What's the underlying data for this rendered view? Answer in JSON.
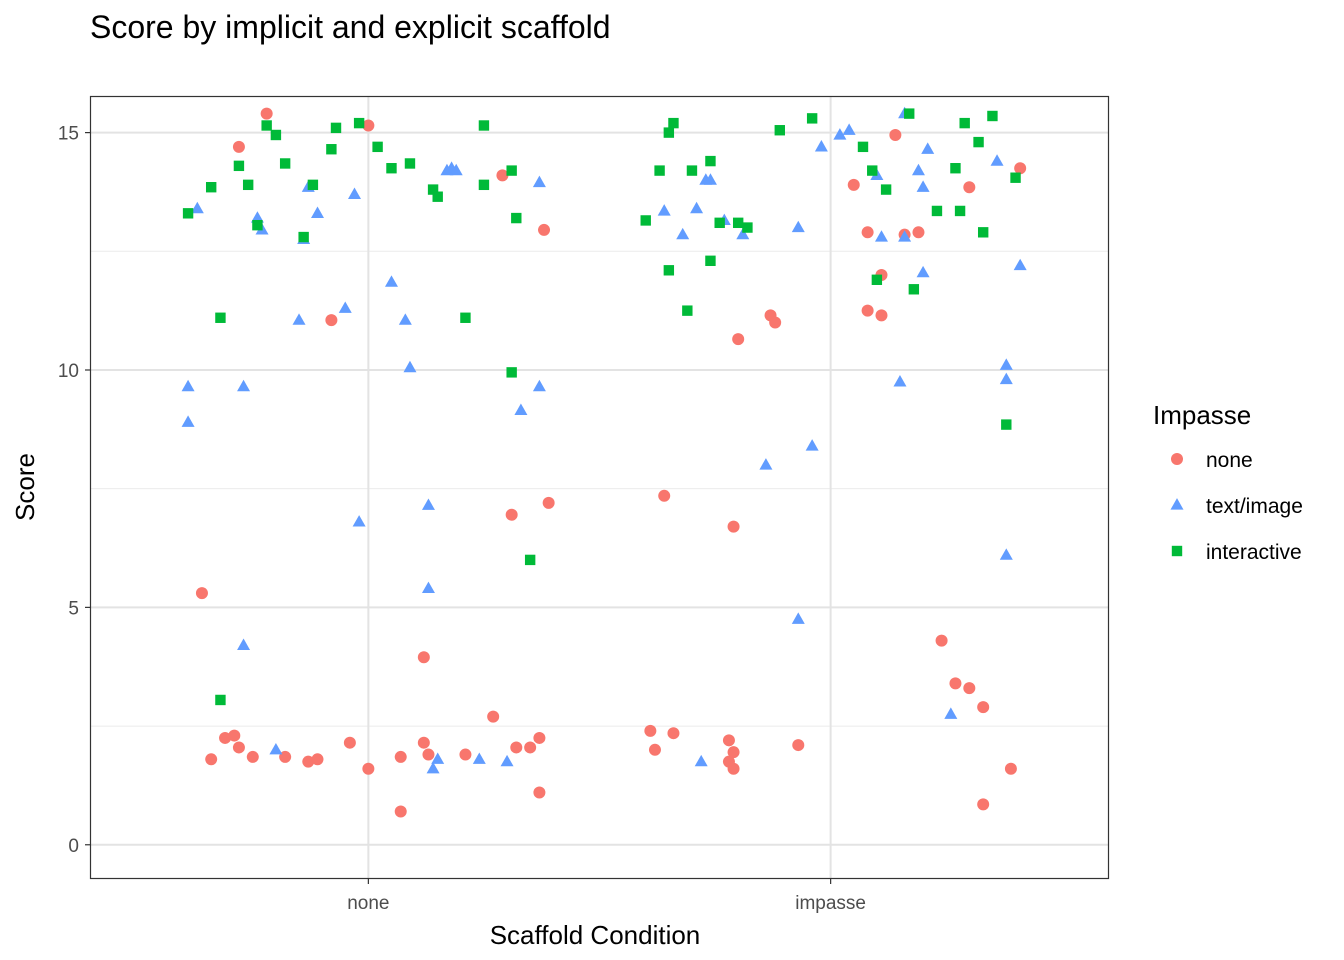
{
  "chart_data": {
    "type": "scatter",
    "title": "Score by implicit and explicit scaffold",
    "xlabel": "Scaffold Condition",
    "ylabel": "Score",
    "categories": [
      "none",
      "impasse"
    ],
    "yticks": [
      "0",
      "5",
      "10",
      "15"
    ],
    "ylim": [
      -0.7,
      15.75
    ],
    "xlim": [
      0.4,
      2.6
    ],
    "grid": true,
    "legend": {
      "title": "Impasse",
      "position": "right"
    },
    "series": [
      {
        "name": "none",
        "color": "#F8766D",
        "shape": "circle",
        "points": [
          [
            0.64,
            5.3
          ],
          [
            0.66,
            1.8
          ],
          [
            0.69,
            2.25
          ],
          [
            0.71,
            2.3
          ],
          [
            0.72,
            2.05
          ],
          [
            0.72,
            14.7
          ],
          [
            0.75,
            1.85
          ],
          [
            0.78,
            15.4
          ],
          [
            0.82,
            1.85
          ],
          [
            0.87,
            1.75
          ],
          [
            0.89,
            1.8
          ],
          [
            0.92,
            11.05
          ],
          [
            0.96,
            2.15
          ],
          [
            1.0,
            15.15
          ],
          [
            1.0,
            1.6
          ],
          [
            1.07,
            0.7
          ],
          [
            1.07,
            1.85
          ],
          [
            1.12,
            3.95
          ],
          [
            1.12,
            2.15
          ],
          [
            1.13,
            1.9
          ],
          [
            1.21,
            1.9
          ],
          [
            1.27,
            2.7
          ],
          [
            1.29,
            14.1
          ],
          [
            1.31,
            6.95
          ],
          [
            1.32,
            2.05
          ],
          [
            1.35,
            2.05
          ],
          [
            1.37,
            2.25
          ],
          [
            1.37,
            1.1
          ],
          [
            1.38,
            12.95
          ],
          [
            1.39,
            7.2
          ],
          [
            1.61,
            2.4
          ],
          [
            1.62,
            2.0
          ],
          [
            1.64,
            7.35
          ],
          [
            1.66,
            2.35
          ],
          [
            1.78,
            2.2
          ],
          [
            1.78,
            1.75
          ],
          [
            1.79,
            6.7
          ],
          [
            1.79,
            1.95
          ],
          [
            1.79,
            1.6
          ],
          [
            1.8,
            10.65
          ],
          [
            1.87,
            11.15
          ],
          [
            1.88,
            11.0
          ],
          [
            1.93,
            2.1
          ],
          [
            2.05,
            13.9
          ],
          [
            2.08,
            12.9
          ],
          [
            2.08,
            11.25
          ],
          [
            2.11,
            12.0
          ],
          [
            2.11,
            11.15
          ],
          [
            2.14,
            14.95
          ],
          [
            2.16,
            12.85
          ],
          [
            2.19,
            12.9
          ],
          [
            2.24,
            4.3
          ],
          [
            2.27,
            3.4
          ],
          [
            2.3,
            13.85
          ],
          [
            2.3,
            3.3
          ],
          [
            2.33,
            2.9
          ],
          [
            2.33,
            0.85
          ],
          [
            2.39,
            1.6
          ],
          [
            2.41,
            14.25
          ]
        ]
      },
      {
        "name": "text/image",
        "color": "#619CFF",
        "shape": "triangle",
        "points": [
          [
            0.61,
            9.65
          ],
          [
            0.61,
            8.9
          ],
          [
            0.63,
            13.4
          ],
          [
            0.73,
            9.65
          ],
          [
            0.76,
            13.2
          ],
          [
            0.77,
            12.95
          ],
          [
            0.73,
            4.2
          ],
          [
            0.8,
            2.0
          ],
          [
            0.85,
            11.05
          ],
          [
            0.86,
            12.75
          ],
          [
            0.87,
            13.85
          ],
          [
            0.89,
            13.3
          ],
          [
            0.95,
            11.3
          ],
          [
            0.97,
            13.7
          ],
          [
            0.98,
            6.8
          ],
          [
            1.05,
            11.85
          ],
          [
            1.08,
            11.05
          ],
          [
            1.09,
            10.05
          ],
          [
            1.13,
            7.15
          ],
          [
            1.13,
            5.4
          ],
          [
            1.14,
            1.6
          ],
          [
            1.15,
            1.8
          ],
          [
            1.17,
            14.2
          ],
          [
            1.18,
            14.25
          ],
          [
            1.19,
            14.2
          ],
          [
            1.24,
            1.8
          ],
          [
            1.3,
            1.75
          ],
          [
            1.33,
            9.15
          ],
          [
            1.37,
            9.65
          ],
          [
            1.37,
            13.95
          ],
          [
            1.64,
            13.35
          ],
          [
            1.68,
            12.85
          ],
          [
            1.71,
            13.4
          ],
          [
            1.73,
            14.0
          ],
          [
            1.74,
            14.0
          ],
          [
            1.72,
            1.75
          ],
          [
            1.77,
            13.15
          ],
          [
            1.81,
            12.85
          ],
          [
            1.86,
            8.0
          ],
          [
            1.93,
            13.0
          ],
          [
            1.93,
            4.75
          ],
          [
            1.96,
            8.4
          ],
          [
            1.98,
            14.7
          ],
          [
            2.02,
            14.95
          ],
          [
            2.04,
            15.05
          ],
          [
            2.1,
            14.1
          ],
          [
            2.11,
            12.8
          ],
          [
            2.15,
            9.75
          ],
          [
            2.16,
            15.4
          ],
          [
            2.16,
            12.8
          ],
          [
            2.19,
            14.2
          ],
          [
            2.2,
            13.85
          ],
          [
            2.21,
            14.65
          ],
          [
            2.2,
            12.05
          ],
          [
            2.26,
            2.75
          ],
          [
            2.36,
            14.4
          ],
          [
            2.38,
            9.8
          ],
          [
            2.38,
            10.1
          ],
          [
            2.38,
            6.1
          ],
          [
            2.41,
            12.2
          ]
        ]
      },
      {
        "name": "interactive",
        "color": "#00BA38",
        "shape": "square",
        "points": [
          [
            0.61,
            13.3
          ],
          [
            0.66,
            13.85
          ],
          [
            0.68,
            11.1
          ],
          [
            0.68,
            3.05
          ],
          [
            0.72,
            14.3
          ],
          [
            0.74,
            13.9
          ],
          [
            0.76,
            13.05
          ],
          [
            0.78,
            15.15
          ],
          [
            0.8,
            14.95
          ],
          [
            0.82,
            14.35
          ],
          [
            0.86,
            12.8
          ],
          [
            0.88,
            13.9
          ],
          [
            0.92,
            14.65
          ],
          [
            0.93,
            15.1
          ],
          [
            0.98,
            15.2
          ],
          [
            1.02,
            14.7
          ],
          [
            1.05,
            14.25
          ],
          [
            1.09,
            14.35
          ],
          [
            1.14,
            13.8
          ],
          [
            1.15,
            13.65
          ],
          [
            1.21,
            11.1
          ],
          [
            1.25,
            15.15
          ],
          [
            1.25,
            13.9
          ],
          [
            1.31,
            14.2
          ],
          [
            1.31,
            9.95
          ],
          [
            1.32,
            13.2
          ],
          [
            1.35,
            6.0
          ],
          [
            1.6,
            13.15
          ],
          [
            1.63,
            14.2
          ],
          [
            1.65,
            15.0
          ],
          [
            1.66,
            15.2
          ],
          [
            1.65,
            12.1
          ],
          [
            1.69,
            11.25
          ],
          [
            1.7,
            14.2
          ],
          [
            1.74,
            12.3
          ],
          [
            1.74,
            14.4
          ],
          [
            1.76,
            13.1
          ],
          [
            1.8,
            13.1
          ],
          [
            1.82,
            13.0
          ],
          [
            1.89,
            15.05
          ],
          [
            1.96,
            15.3
          ],
          [
            2.07,
            14.7
          ],
          [
            2.09,
            14.2
          ],
          [
            2.1,
            11.9
          ],
          [
            2.12,
            13.8
          ],
          [
            2.17,
            15.4
          ],
          [
            2.18,
            11.7
          ],
          [
            2.23,
            13.35
          ],
          [
            2.27,
            14.25
          ],
          [
            2.29,
            15.2
          ],
          [
            2.28,
            13.35
          ],
          [
            2.32,
            14.8
          ],
          [
            2.33,
            12.9
          ],
          [
            2.35,
            15.35
          ],
          [
            2.38,
            8.85
          ],
          [
            2.4,
            14.05
          ]
        ]
      }
    ]
  }
}
